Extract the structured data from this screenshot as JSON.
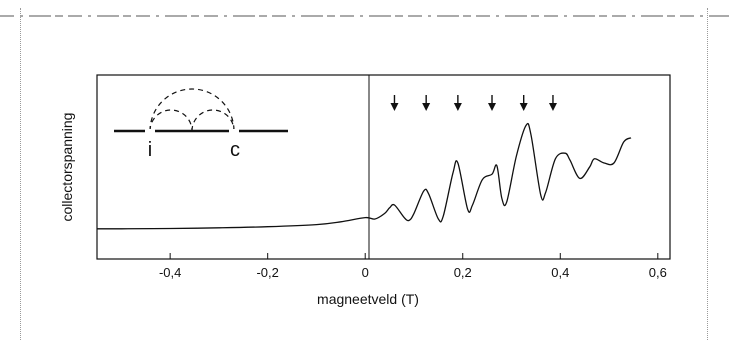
{
  "chart_data": {
    "type": "line",
    "xlabel": "magneetveld (T)",
    "ylabel": "collectorspanning",
    "xlim": [
      -0.55,
      0.625
    ],
    "ylim": [
      0,
      1
    ],
    "x_ticks": [
      -0.4,
      -0.2,
      0,
      0.2,
      0.4,
      0.6
    ],
    "x_tick_labels": [
      "-0,4",
      "-0,2",
      "0",
      "0,2",
      "0,4",
      "0,6"
    ],
    "grid": false,
    "series": [
      {
        "x": [
          -0.55,
          -0.5,
          -0.4,
          -0.3,
          -0.2,
          -0.1,
          -0.05,
          0,
          0.02,
          0.04,
          0.05,
          0.06,
          0.08,
          0.09,
          0.1,
          0.12,
          0.13,
          0.15,
          0.16,
          0.18,
          0.19,
          0.21,
          0.22,
          0.24,
          0.26,
          0.27,
          0.28,
          0.29,
          0.31,
          0.33,
          0.34,
          0.36,
          0.37,
          0.39,
          0.41,
          0.42,
          0.44,
          0.46,
          0.47,
          0.49,
          0.51,
          0.53,
          0.545
        ],
        "y": [
          0.08,
          0.08,
          0.082,
          0.087,
          0.095,
          0.11,
          0.13,
          0.16,
          0.15,
          0.19,
          0.23,
          0.25,
          0.16,
          0.14,
          0.19,
          0.35,
          0.33,
          0.15,
          0.17,
          0.48,
          0.55,
          0.22,
          0.25,
          0.43,
          0.47,
          0.53,
          0.3,
          0.27,
          0.6,
          0.82,
          0.75,
          0.32,
          0.34,
          0.58,
          0.62,
          0.57,
          0.44,
          0.52,
          0.58,
          0.55,
          0.55,
          0.7,
          0.73
        ]
      }
    ],
    "annotations": {
      "arrows_x": [
        0.06,
        0.125,
        0.19,
        0.26,
        0.325,
        0.385
      ],
      "inset_labels": [
        "i",
        "c"
      ]
    }
  },
  "colors": {
    "line": "#111111",
    "frame": "#111111",
    "background": "#ffffff"
  },
  "icons": [
    "down-arrow-icon",
    "focusing-inset-icon"
  ]
}
